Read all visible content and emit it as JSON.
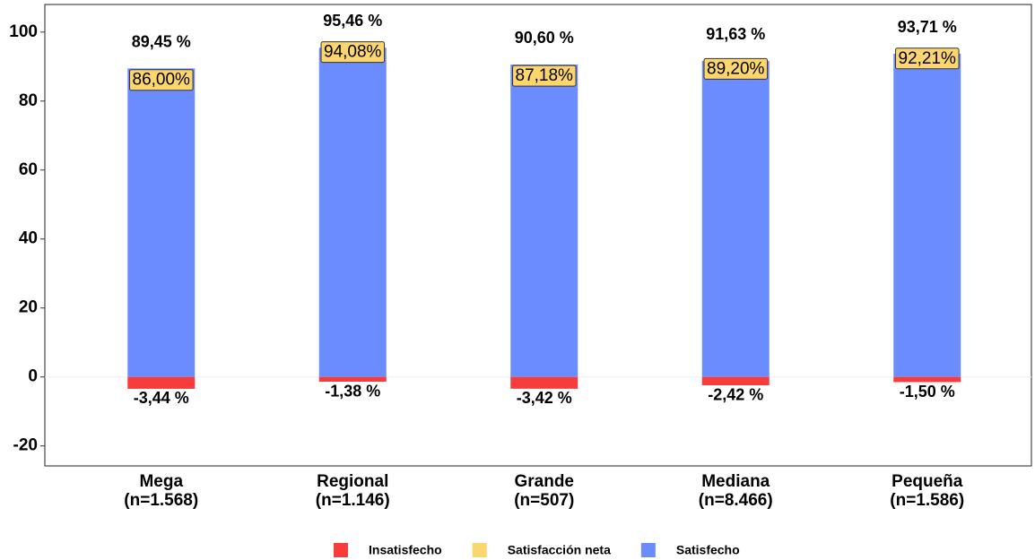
{
  "chart_data": {
    "type": "bar",
    "categories": [
      "Mega\n(n=1.568)",
      "Regional\n(n=1.146)",
      "Grande\n(n=507)",
      "Mediana\n(n=8.466)",
      "Pequeña\n(n=1.586)"
    ],
    "series": [
      {
        "name": "Insatisfecho",
        "color": "#f83b3b",
        "values": [
          -3.44,
          -1.38,
          -3.42,
          -2.42,
          -1.5
        ],
        "value_labels": [
          "-3,44 %",
          "-1,38 %",
          "-3,42 %",
          "-2,42 %",
          "-1,50 %"
        ]
      },
      {
        "name": "Satisfacción neta",
        "color": "#fbd66e",
        "values": [
          86.0,
          94.08,
          87.18,
          89.2,
          92.21
        ],
        "value_labels": [
          "86,00%",
          "94,08%",
          "87,18%",
          "89,20%",
          "92,21%"
        ]
      },
      {
        "name": "Satisfecho",
        "color": "#6b8cff",
        "values": [
          89.45,
          95.46,
          90.6,
          91.63,
          93.71
        ],
        "value_labels": [
          "89,45 %",
          "95,46 %",
          "90,60 %",
          "91,63 %",
          "93,71 %"
        ]
      }
    ],
    "ylim": [
      -25.8,
      108
    ],
    "yticks": [
      -20,
      0,
      20,
      40,
      60,
      80,
      100
    ],
    "legend": "bottom"
  }
}
